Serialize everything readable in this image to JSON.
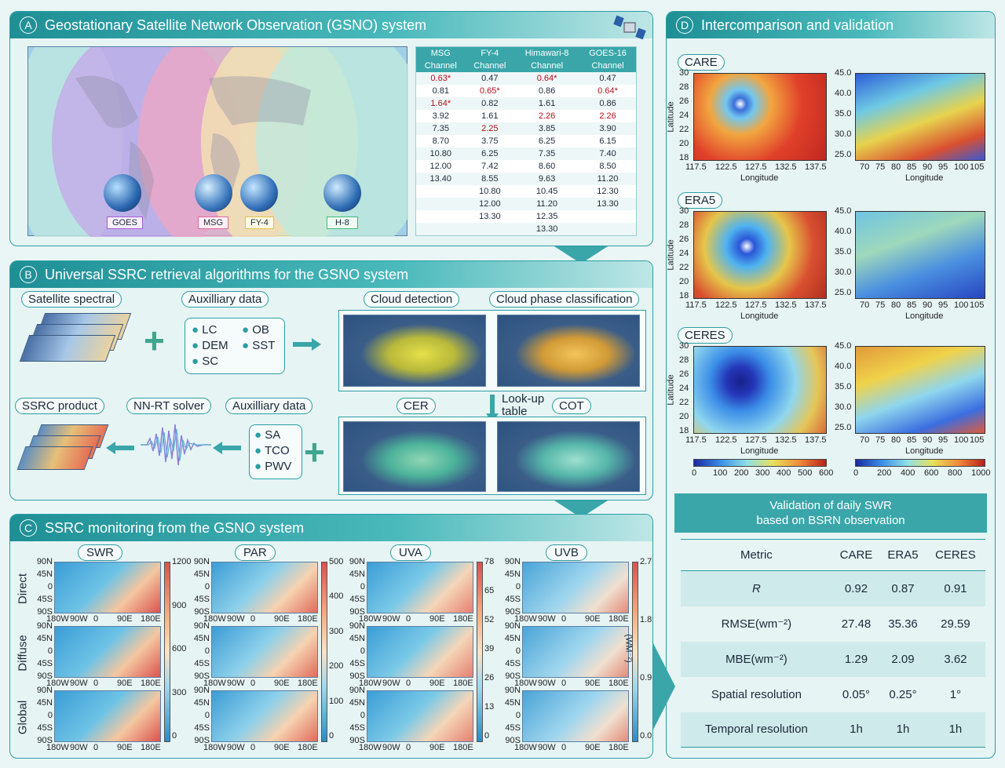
{
  "panelA": {
    "letter": "A",
    "title": "Geostationary Satellite Network Observation (GSNO) system",
    "satellites": [
      "GOES",
      "MSG",
      "FY-4",
      "H-8"
    ],
    "table": {
      "headers": [
        "MSG",
        "FY-4",
        "Himawari-8",
        "GOES-16"
      ],
      "subheaders": [
        "Channel",
        "Channel",
        "Channel",
        "Channel"
      ],
      "rows": [
        [
          "0.63*",
          "0.47",
          "0.64*",
          "0.47"
        ],
        [
          "0.81",
          "0.65*",
          "0.86",
          "0.64*"
        ],
        [
          "1.64*",
          "0.82",
          "1.61",
          "0.86"
        ],
        [
          "3.92",
          "1.61",
          "2.26",
          "2.26"
        ],
        [
          "7.35",
          "2.25",
          "3.85",
          "3.90"
        ],
        [
          "8.70",
          "3.75",
          "6.25",
          "6.15"
        ],
        [
          "10.80",
          "6.25",
          "7.35",
          "7.40"
        ],
        [
          "12.00",
          "7.42",
          "8.60",
          "8.50"
        ],
        [
          "13.40",
          "8.55",
          "9.63",
          "11.20"
        ],
        [
          "",
          "10.80",
          "10.45",
          "12.30"
        ],
        [
          "",
          "12.00",
          "11.20",
          "13.30"
        ],
        [
          "",
          "13.30",
          "12.35",
          ""
        ],
        [
          "",
          "",
          "13.30",
          ""
        ]
      ],
      "highlight_color": "#b3101b"
    }
  },
  "panelB": {
    "letter": "B",
    "title": "Universal SSRC retrieval algorithms for the GSNO system",
    "labels": {
      "satellite_spectral": "Satellite spectral",
      "aux1": "Auxilliary data",
      "cloud_detection": "Cloud detection",
      "cloud_phase": "Cloud phase classification",
      "ssrc_product": "SSRC product",
      "nnrt": "NN-RT solver",
      "aux2": "Auxilliary data",
      "cer": "CER",
      "cot": "COT",
      "lookup": "Look-up table"
    },
    "aux1_items": [
      "LC",
      "OB",
      "DEM",
      "SST",
      "SC"
    ],
    "aux2_items": [
      "SA",
      "TCO",
      "PWV"
    ]
  },
  "panelC": {
    "letter": "C",
    "title": "SSRC monitoring from the GSNO system",
    "columns": [
      "SWR",
      "PAR",
      "UVA",
      "UVB"
    ],
    "rows": [
      "Direct",
      "Diffuse",
      "Global"
    ],
    "lat_ticks": [
      "90N",
      "45N",
      "0",
      "45S",
      "90S"
    ],
    "lon_ticks": [
      "180W",
      "90W",
      "0",
      "90E",
      "180E"
    ],
    "colorbars": [
      [
        "1200",
        "900",
        "600",
        "300",
        "0"
      ],
      [
        "500",
        "400",
        "300",
        "200",
        "100",
        "0"
      ],
      [
        "78",
        "65",
        "52",
        "39",
        "26",
        "13",
        "0"
      ],
      [
        "2.7",
        "1.8",
        "0.9",
        "0.0"
      ]
    ],
    "unit": "(WM⁻²)"
  },
  "panelD": {
    "letter": "D",
    "title": "Intercomparison and validation",
    "products": [
      "CARE",
      "ERA5",
      "CERES"
    ],
    "left_axis": {
      "yticks": [
        "30",
        "28",
        "26",
        "24",
        "22",
        "20",
        "18"
      ],
      "xticks": [
        "117.5",
        "122.5",
        "127.5",
        "132.5",
        "137.5"
      ],
      "ylabel": "Latitude",
      "xlabel": "Longitude"
    },
    "right_axis": {
      "yticks": [
        "45.0",
        "40.0",
        "35.0",
        "30.0",
        "25.0"
      ],
      "xticks": [
        "70",
        "75",
        "80",
        "85",
        "90",
        "95",
        "100",
        "105"
      ],
      "xlabel": "Longitude"
    },
    "cbar_left": [
      "0",
      "100",
      "200",
      "300",
      "400",
      "500",
      "600"
    ],
    "cbar_right": [
      "0",
      "200",
      "400",
      "600",
      "800",
      "1000"
    ],
    "validation_title_1": "Validation of daily SWR",
    "validation_title_2": "based on BSRN observation",
    "table_headers": [
      "Metric",
      "CARE",
      "ERA5",
      "CERES"
    ],
    "table_rows": [
      [
        "R",
        "0.92",
        "0.87",
        "0.91"
      ],
      [
        "RMSE(wm⁻²)",
        "27.48",
        "35.36",
        "29.59"
      ],
      [
        "MBE(wm⁻²)",
        "1.29",
        "2.09",
        "3.62"
      ],
      [
        "Spatial resolution",
        "0.05°",
        "0.25°",
        "1°"
      ],
      [
        "Temporal resolution",
        "1h",
        "1h",
        "1h"
      ]
    ]
  }
}
